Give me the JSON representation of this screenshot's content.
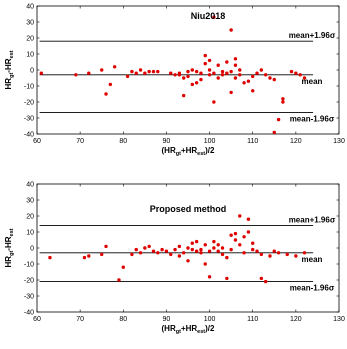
{
  "chart_data": [
    {
      "type": "scatter",
      "title": "Niu2018",
      "xlabel": "(HR_gt+HR_est)/2",
      "ylabel": "HR_gt-HR_est",
      "xlim": [
        60,
        130
      ],
      "ylim": [
        -40,
        40
      ],
      "xticks": [
        60,
        70,
        80,
        90,
        100,
        110,
        120,
        130
      ],
      "yticks": [
        -40,
        -30,
        -20,
        -10,
        0,
        10,
        20,
        30,
        40
      ],
      "color": "#e00000",
      "lines": [
        {
          "label": "mean+1.96σ",
          "y": 18
        },
        {
          "label": "mean",
          "y": -3
        },
        {
          "label": "mean-1.96σ",
          "y": -26.5
        }
      ],
      "points": [
        [
          61,
          -2
        ],
        [
          69,
          -3
        ],
        [
          72,
          -2
        ],
        [
          75,
          0
        ],
        [
          76,
          -15
        ],
        [
          77,
          -9
        ],
        [
          78,
          2
        ],
        [
          81,
          -4
        ],
        [
          82,
          -1
        ],
        [
          83,
          -2
        ],
        [
          84,
          0
        ],
        [
          85,
          -2
        ],
        [
          86,
          -1
        ],
        [
          87,
          -1
        ],
        [
          88,
          -1
        ],
        [
          91,
          -2
        ],
        [
          92,
          -3
        ],
        [
          93,
          -3
        ],
        [
          93,
          -2
        ],
        [
          94,
          -5
        ],
        [
          94,
          -16
        ],
        [
          95,
          -1
        ],
        [
          95,
          -4
        ],
        [
          96,
          0
        ],
        [
          96,
          -9
        ],
        [
          97,
          -1
        ],
        [
          97,
          -8
        ],
        [
          98,
          -2
        ],
        [
          98,
          -6
        ],
        [
          99,
          9
        ],
        [
          99,
          4
        ],
        [
          100,
          0
        ],
        [
          100,
          -3
        ],
        [
          100,
          6
        ],
        [
          101,
          -2
        ],
        [
          101,
          33
        ],
        [
          101,
          -20
        ],
        [
          102,
          -5
        ],
        [
          102,
          3
        ],
        [
          103,
          -1
        ],
        [
          103,
          -3
        ],
        [
          104,
          -2
        ],
        [
          104,
          5
        ],
        [
          105,
          -1
        ],
        [
          105,
          -14
        ],
        [
          105,
          25
        ],
        [
          106,
          7
        ],
        [
          106,
          3
        ],
        [
          106,
          -5
        ],
        [
          107,
          0
        ],
        [
          107,
          -3
        ],
        [
          108,
          -8
        ],
        [
          109,
          -7
        ],
        [
          110,
          -4
        ],
        [
          110,
          -13
        ],
        [
          111,
          -2
        ],
        [
          112,
          0
        ],
        [
          113,
          -3
        ],
        [
          114,
          -5
        ],
        [
          115,
          -6
        ],
        [
          115,
          -39
        ],
        [
          116,
          -31
        ],
        [
          117,
          -20
        ],
        [
          117,
          -18
        ],
        [
          119,
          -1
        ],
        [
          120,
          -2
        ],
        [
          121,
          -3
        ],
        [
          122,
          -5
        ]
      ]
    },
    {
      "type": "scatter",
      "title": "Proposed method",
      "xlabel": "(HR_gt+HR_est)/2",
      "ylabel": "HR_gt-HR_est",
      "xlim": [
        60,
        130
      ],
      "ylim": [
        -40,
        40
      ],
      "xticks": [
        60,
        70,
        80,
        90,
        100,
        110,
        120,
        130
      ],
      "yticks": [
        -40,
        -30,
        -20,
        -10,
        0,
        10,
        20,
        30,
        40
      ],
      "color": "#e00000",
      "lines": [
        {
          "label": "mean+1.96σ",
          "y": 14
        },
        {
          "label": "mean",
          "y": -3
        },
        {
          "label": "mean-1.96σ",
          "y": -21
        }
      ],
      "points": [
        [
          63,
          -6
        ],
        [
          71,
          -6
        ],
        [
          72,
          -5
        ],
        [
          75,
          -4
        ],
        [
          76,
          1
        ],
        [
          79,
          -20
        ],
        [
          80,
          -12
        ],
        [
          82,
          -4
        ],
        [
          83,
          -1
        ],
        [
          84,
          -3
        ],
        [
          85,
          0
        ],
        [
          86,
          1
        ],
        [
          87,
          -2
        ],
        [
          88,
          -3
        ],
        [
          89,
          -1
        ],
        [
          90,
          -2
        ],
        [
          91,
          -4
        ],
        [
          92,
          -1
        ],
        [
          93,
          1
        ],
        [
          93,
          -5
        ],
        [
          94,
          -3
        ],
        [
          95,
          0
        ],
        [
          95,
          -8
        ],
        [
          96,
          3
        ],
        [
          96,
          -1
        ],
        [
          97,
          -2
        ],
        [
          97,
          4
        ],
        [
          98,
          -1
        ],
        [
          98,
          -3
        ],
        [
          99,
          -10
        ],
        [
          99,
          2
        ],
        [
          100,
          -18
        ],
        [
          100,
          -2
        ],
        [
          101,
          0
        ],
        [
          101,
          4
        ],
        [
          102,
          -2
        ],
        [
          102,
          2
        ],
        [
          103,
          0
        ],
        [
          103,
          -4
        ],
        [
          104,
          -19
        ],
        [
          104,
          -6
        ],
        [
          105,
          8
        ],
        [
          105,
          -1
        ],
        [
          106,
          9
        ],
        [
          106,
          5
        ],
        [
          107,
          20
        ],
        [
          107,
          2
        ],
        [
          108,
          7
        ],
        [
          108,
          -3
        ],
        [
          109,
          10
        ],
        [
          109,
          18
        ],
        [
          110,
          -1
        ],
        [
          110,
          3
        ],
        [
          111,
          -2
        ],
        [
          112,
          -4
        ],
        [
          112,
          -19
        ],
        [
          113,
          -21
        ],
        [
          114,
          -5
        ],
        [
          115,
          -2
        ],
        [
          116,
          -3
        ],
        [
          118,
          -4
        ],
        [
          120,
          -5
        ],
        [
          122,
          -3
        ]
      ]
    }
  ]
}
